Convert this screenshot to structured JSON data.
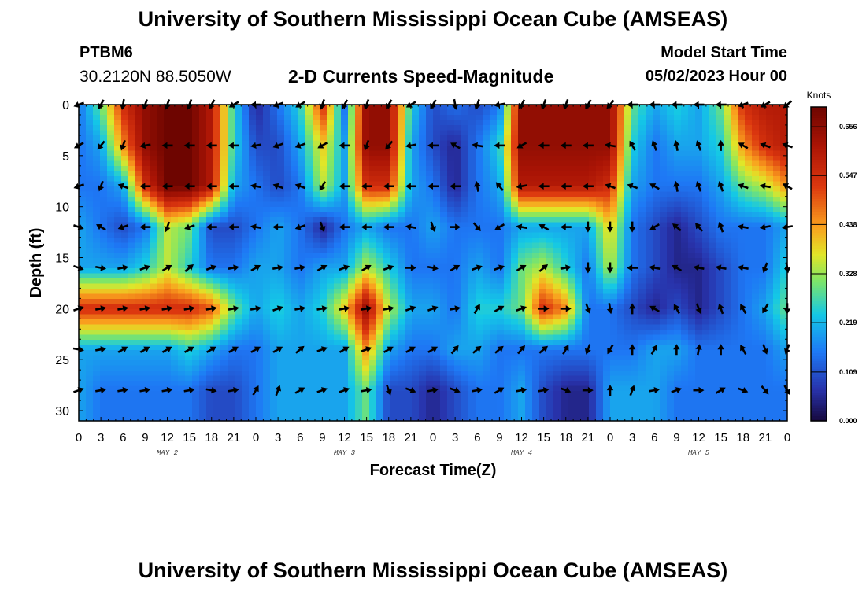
{
  "header": {
    "title": "University of Southern Mississippi Ocean Cube (AMSEAS)",
    "station": "PTBM6",
    "coordinates": "30.2120N  88.5050W",
    "chart_title": "2-D Currents Speed-Magnitude",
    "model_start_label": "Model Start Time",
    "model_start_value": "05/02/2023 Hour 00"
  },
  "footer": {
    "title": "University of Southern Mississippi Ocean Cube (AMSEAS)"
  },
  "chart_data": {
    "type": "heatmap",
    "title": "2-D Currents Speed-Magnitude",
    "xlabel": "Forecast Time(Z)",
    "ylabel": "Depth (ft)",
    "x_range_hours": [
      0,
      96
    ],
    "y_range_ft": [
      0,
      31
    ],
    "x_ticks": [
      {
        "hour": 0,
        "label": "0"
      },
      {
        "hour": 3,
        "label": "3"
      },
      {
        "hour": 6,
        "label": "6"
      },
      {
        "hour": 9,
        "label": "9"
      },
      {
        "hour": 12,
        "label": "12"
      },
      {
        "hour": 15,
        "label": "15"
      },
      {
        "hour": 18,
        "label": "18"
      },
      {
        "hour": 21,
        "label": "21"
      },
      {
        "hour": 24,
        "label": "0"
      },
      {
        "hour": 27,
        "label": "3"
      },
      {
        "hour": 30,
        "label": "6"
      },
      {
        "hour": 33,
        "label": "9"
      },
      {
        "hour": 36,
        "label": "12"
      },
      {
        "hour": 39,
        "label": "15"
      },
      {
        "hour": 42,
        "label": "18"
      },
      {
        "hour": 45,
        "label": "21"
      },
      {
        "hour": 48,
        "label": "0"
      },
      {
        "hour": 51,
        "label": "3"
      },
      {
        "hour": 54,
        "label": "6"
      },
      {
        "hour": 57,
        "label": "9"
      },
      {
        "hour": 60,
        "label": "12"
      },
      {
        "hour": 63,
        "label": "15"
      },
      {
        "hour": 66,
        "label": "18"
      },
      {
        "hour": 69,
        "label": "21"
      },
      {
        "hour": 72,
        "label": "0"
      },
      {
        "hour": 75,
        "label": "3"
      },
      {
        "hour": 78,
        "label": "6"
      },
      {
        "hour": 81,
        "label": "9"
      },
      {
        "hour": 84,
        "label": "12"
      },
      {
        "hour": 87,
        "label": "15"
      },
      {
        "hour": 90,
        "label": "18"
      },
      {
        "hour": 93,
        "label": "21"
      },
      {
        "hour": 96,
        "label": "0"
      }
    ],
    "date_labels": [
      {
        "hour": 12,
        "label": "MAY 2"
      },
      {
        "hour": 36,
        "label": "MAY 3"
      },
      {
        "hour": 60,
        "label": "MAY 4"
      },
      {
        "hour": 84,
        "label": "MAY 5"
      }
    ],
    "y_ticks": [
      0,
      5,
      10,
      15,
      20,
      25,
      30
    ],
    "colorbar": {
      "unit": "Knots",
      "min": 0.0,
      "max": 0.7,
      "tick_values": [
        0.0,
        0.109,
        0.219,
        0.328,
        0.438,
        0.547,
        0.656
      ],
      "tick_labels": [
        "0.000",
        "0.109",
        "0.219",
        "0.328",
        "0.438",
        "0.547",
        "0.656"
      ]
    },
    "depth_levels_ft": [
      0,
      4,
      8,
      12,
      16,
      20,
      24,
      28
    ],
    "vector_times_hours": [
      0,
      3,
      6,
      9,
      12,
      15,
      18,
      21,
      24,
      27,
      30,
      33,
      36,
      39,
      42,
      45,
      48,
      51,
      54,
      57,
      60,
      63,
      66,
      69,
      72,
      75,
      78,
      81,
      84,
      87,
      90,
      93,
      96
    ],
    "speed_knots": [
      [
        0.15,
        0.3,
        0.55,
        0.65,
        0.7,
        0.7,
        0.6,
        0.25,
        0.05,
        0.15,
        0.25,
        0.55,
        0.15,
        0.65,
        0.65,
        0.25,
        0.1,
        0.15,
        0.1,
        0.15,
        0.65,
        0.65,
        0.65,
        0.65,
        0.65,
        0.3,
        0.2,
        0.25,
        0.2,
        0.3,
        0.55,
        0.6,
        0.6
      ],
      [
        0.15,
        0.2,
        0.45,
        0.65,
        0.7,
        0.7,
        0.6,
        0.25,
        0.1,
        0.1,
        0.2,
        0.4,
        0.2,
        0.65,
        0.65,
        0.2,
        0.1,
        0.05,
        0.15,
        0.25,
        0.65,
        0.65,
        0.65,
        0.65,
        0.65,
        0.25,
        0.15,
        0.2,
        0.2,
        0.25,
        0.45,
        0.55,
        0.6
      ],
      [
        0.15,
        0.15,
        0.2,
        0.55,
        0.7,
        0.7,
        0.6,
        0.2,
        0.15,
        0.1,
        0.15,
        0.35,
        0.2,
        0.55,
        0.55,
        0.2,
        0.15,
        0.05,
        0.15,
        0.2,
        0.6,
        0.6,
        0.6,
        0.6,
        0.55,
        0.2,
        0.15,
        0.15,
        0.15,
        0.2,
        0.3,
        0.35,
        0.45
      ],
      [
        0.2,
        0.15,
        0.1,
        0.15,
        0.35,
        0.3,
        0.1,
        0.1,
        0.15,
        0.2,
        0.15,
        0.05,
        0.15,
        0.2,
        0.15,
        0.15,
        0.2,
        0.15,
        0.15,
        0.15,
        0.2,
        0.2,
        0.2,
        0.2,
        0.4,
        0.15,
        0.1,
        0.05,
        0.1,
        0.15,
        0.15,
        0.15,
        0.2
      ],
      [
        0.2,
        0.2,
        0.2,
        0.25,
        0.35,
        0.25,
        0.15,
        0.15,
        0.2,
        0.2,
        0.15,
        0.2,
        0.2,
        0.35,
        0.25,
        0.15,
        0.15,
        0.15,
        0.2,
        0.15,
        0.3,
        0.35,
        0.25,
        0.15,
        0.35,
        0.15,
        0.1,
        0.05,
        0.05,
        0.1,
        0.15,
        0.15,
        0.25
      ],
      [
        0.55,
        0.55,
        0.55,
        0.55,
        0.55,
        0.55,
        0.5,
        0.3,
        0.2,
        0.25,
        0.2,
        0.25,
        0.4,
        0.65,
        0.35,
        0.2,
        0.2,
        0.15,
        0.25,
        0.25,
        0.3,
        0.55,
        0.45,
        0.15,
        0.15,
        0.1,
        0.05,
        0.1,
        0.05,
        0.1,
        0.15,
        0.2,
        0.3
      ],
      [
        0.2,
        0.2,
        0.2,
        0.2,
        0.2,
        0.25,
        0.2,
        0.15,
        0.15,
        0.2,
        0.2,
        0.2,
        0.2,
        0.45,
        0.2,
        0.15,
        0.15,
        0.2,
        0.2,
        0.15,
        0.15,
        0.15,
        0.15,
        0.15,
        0.15,
        0.15,
        0.2,
        0.2,
        0.15,
        0.15,
        0.15,
        0.15,
        0.2
      ],
      [
        0.2,
        0.15,
        0.15,
        0.15,
        0.15,
        0.15,
        0.1,
        0.1,
        0.15,
        0.2,
        0.2,
        0.2,
        0.2,
        0.3,
        0.1,
        0.1,
        0.05,
        0.1,
        0.15,
        0.15,
        0.2,
        0.1,
        0.05,
        0.05,
        0.2,
        0.2,
        0.2,
        0.15,
        0.15,
        0.15,
        0.15,
        0.15,
        0.15
      ]
    ],
    "direction_deg": [
      [
        250,
        210,
        190,
        200,
        200,
        200,
        210,
        240,
        270,
        250,
        240,
        200,
        210,
        200,
        210,
        240,
        210,
        170,
        200,
        260,
        210,
        200,
        200,
        210,
        220,
        270,
        270,
        270,
        270,
        270,
        250,
        240,
        230
      ],
      [
        240,
        220,
        200,
        260,
        270,
        270,
        270,
        270,
        260,
        250,
        250,
        240,
        270,
        200,
        220,
        260,
        270,
        300,
        280,
        270,
        240,
        270,
        270,
        270,
        280,
        330,
        340,
        350,
        340,
        0,
        300,
        290,
        290
      ],
      [
        250,
        200,
        290,
        270,
        270,
        270,
        270,
        270,
        280,
        290,
        290,
        210,
        270,
        270,
        270,
        270,
        270,
        270,
        350,
        320,
        260,
        270,
        270,
        270,
        290,
        290,
        300,
        350,
        340,
        340,
        290,
        280,
        300
      ],
      [
        110,
        300,
        250,
        270,
        200,
        250,
        270,
        270,
        280,
        270,
        250,
        160,
        270,
        270,
        270,
        280,
        160,
        90,
        140,
        240,
        280,
        300,
        270,
        180,
        180,
        180,
        240,
        310,
        320,
        340,
        280,
        260,
        260
      ],
      [
        110,
        100,
        80,
        70,
        60,
        50,
        70,
        80,
        60,
        80,
        80,
        60,
        70,
        60,
        70,
        90,
        100,
        60,
        70,
        70,
        60,
        50,
        80,
        180,
        180,
        270,
        280,
        300,
        280,
        280,
        280,
        200,
        170
      ],
      [
        70,
        80,
        80,
        80,
        80,
        80,
        80,
        80,
        80,
        70,
        80,
        80,
        80,
        80,
        80,
        70,
        70,
        80,
        30,
        60,
        70,
        90,
        90,
        160,
        170,
        0,
        300,
        330,
        160,
        340,
        330,
        210,
        180
      ],
      [
        100,
        80,
        60,
        60,
        60,
        60,
        60,
        60,
        60,
        60,
        50,
        70,
        60,
        70,
        60,
        60,
        60,
        40,
        50,
        50,
        40,
        50,
        30,
        200,
        210,
        0,
        30,
        0,
        10,
        0,
        330,
        160,
        200
      ],
      [
        70,
        80,
        80,
        80,
        80,
        80,
        100,
        80,
        30,
        20,
        60,
        70,
        70,
        80,
        160,
        110,
        80,
        110,
        80,
        60,
        80,
        80,
        110,
        90,
        0,
        20,
        80,
        70,
        90,
        60,
        110,
        140,
        150
      ]
    ]
  }
}
